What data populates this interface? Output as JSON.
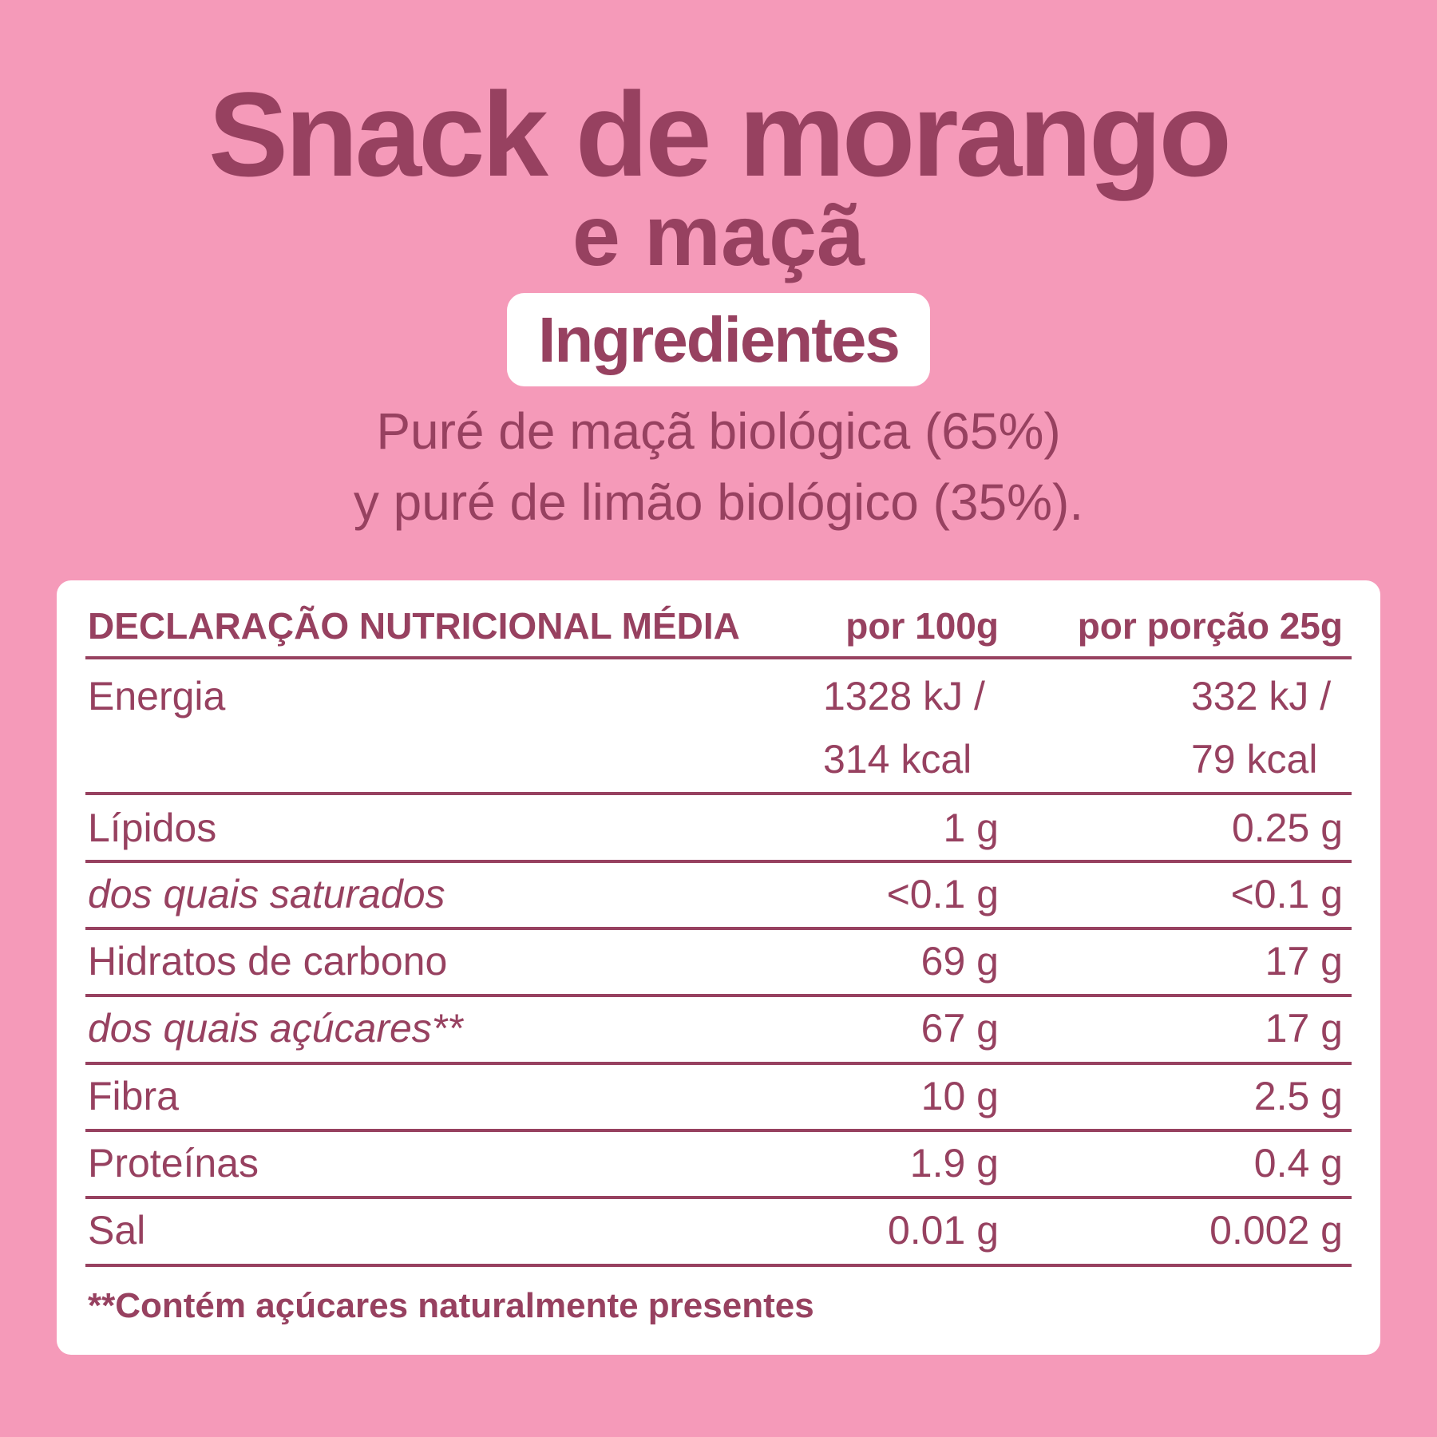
{
  "colors": {
    "background": "#F59AB9",
    "text": "#974160",
    "card": "#FFFFFF"
  },
  "title": {
    "line1": "Snack de morango",
    "line2": "e maçã"
  },
  "ingredients": {
    "heading": "Ingredientes",
    "line1": "Puré de maçã biológica (65%)",
    "line2": "y puré de limão biológico (35%)."
  },
  "table": {
    "headers": [
      "DECLARAÇÃO NUTRICIONAL MÉDIA",
      "por 100g",
      "por porção 25g"
    ],
    "energy": {
      "label": "Energia",
      "per100_kj": "1328 kJ /",
      "per100_kcal": "314 kcal",
      "portion_kj": "332 kJ /",
      "portion_kcal": "79 kcal"
    },
    "rows": [
      {
        "label": "Lípidos",
        "per100": "1 g",
        "portion": "0.25 g",
        "italic": false
      },
      {
        "label": "dos quais saturados",
        "per100": "<0.1 g",
        "portion": "<0.1 g",
        "italic": true
      },
      {
        "label": "Hidratos de carbono",
        "per100": "69 g",
        "portion": "17 g",
        "italic": false
      },
      {
        "label": "dos quais açúcares**",
        "per100": "67 g",
        "portion": "17 g",
        "italic": true
      },
      {
        "label": "Fibra",
        "per100": "10 g",
        "portion": "2.5 g",
        "italic": false
      },
      {
        "label": "Proteínas",
        "per100": "1.9 g",
        "portion": "0.4 g",
        "italic": false
      },
      {
        "label": "Sal",
        "per100": "0.01 g",
        "portion": "0.002 g",
        "italic": false
      }
    ],
    "footnote": "**Contém açúcares naturalmente presentes"
  }
}
